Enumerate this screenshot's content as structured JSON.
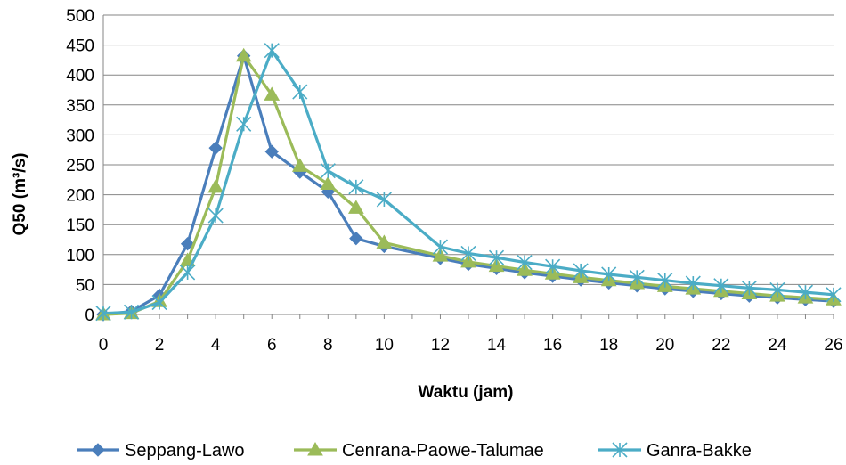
{
  "chart_data": {
    "type": "line",
    "xlabel": "Waktu (jam)",
    "ylabel": "Q50 (m³/s)",
    "xlim": [
      0,
      26
    ],
    "ylim": [
      0,
      500
    ],
    "xticks": [
      0,
      2,
      4,
      6,
      8,
      10,
      12,
      14,
      16,
      18,
      20,
      22,
      24,
      26
    ],
    "yticks": [
      0,
      50,
      100,
      150,
      200,
      250,
      300,
      350,
      400,
      450,
      500
    ],
    "grid": "horizontal",
    "legend_position": "bottom",
    "series": [
      {
        "name": "Seppang-Lawo",
        "color": "#4a7ebb",
        "marker": "diamond",
        "x": [
          0,
          1,
          2,
          3,
          4,
          5,
          6,
          7,
          8,
          9,
          10,
          12,
          13,
          14,
          15,
          16,
          17,
          18,
          19,
          20,
          21,
          22,
          23,
          24,
          25,
          26
        ],
        "values": [
          0,
          5,
          32,
          118,
          278,
          432,
          272,
          238,
          205,
          127,
          114,
          94,
          84,
          77,
          70,
          64,
          58,
          53,
          48,
          43,
          39,
          35,
          31,
          28,
          25,
          22
        ]
      },
      {
        "name": "Cenrana-Paowe-Talumae",
        "color": "#9bbb59",
        "marker": "triangle",
        "x": [
          0,
          1,
          2,
          3,
          4,
          5,
          6,
          7,
          8,
          9,
          10,
          12,
          13,
          14,
          15,
          16,
          17,
          18,
          19,
          20,
          21,
          22,
          23,
          24,
          25,
          26
        ],
        "values": [
          0,
          2,
          22,
          90,
          213,
          432,
          367,
          248,
          218,
          178,
          120,
          98,
          88,
          81,
          74,
          68,
          62,
          57,
          52,
          47,
          43,
          39,
          35,
          31,
          28,
          25
        ]
      },
      {
        "name": "Ganra-Bakke",
        "color": "#4bacc6",
        "marker": "asterisk",
        "x": [
          0,
          1,
          2,
          3,
          4,
          5,
          6,
          7,
          8,
          9,
          10,
          12,
          13,
          14,
          15,
          16,
          17,
          18,
          19,
          20,
          21,
          22,
          23,
          24,
          25,
          26
        ],
        "values": [
          2,
          4,
          20,
          70,
          165,
          318,
          441,
          372,
          240,
          213,
          192,
          113,
          102,
          95,
          87,
          80,
          73,
          67,
          62,
          57,
          52,
          48,
          44,
          41,
          37,
          33
        ]
      }
    ]
  }
}
